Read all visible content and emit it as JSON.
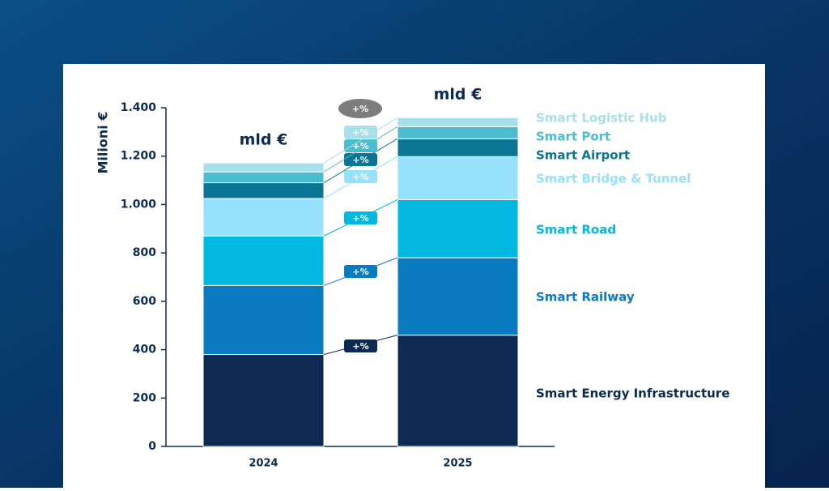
{
  "chart_data": {
    "type": "stacked_bar",
    "y_label": "Milioni €",
    "categories": [
      "2024",
      "2025"
    ],
    "total_labels": [
      "mld €",
      "mld €"
    ],
    "total_change_label": "+%",
    "series": [
      {
        "name": "Smart Energy Infrastructure",
        "color": "#0d2b52",
        "values": [
          380,
          460
        ],
        "change_label": "+%"
      },
      {
        "name": "Smart Railway",
        "color": "#0a7bc0",
        "values": [
          285,
          320
        ],
        "change_label": "+%"
      },
      {
        "name": "Smart Road",
        "color": "#00b8e0",
        "values": [
          205,
          240
        ],
        "change_label": "+%"
      },
      {
        "name": "Smart Bridge & Tunnel",
        "color": "#96e1fb",
        "values": [
          155,
          178
        ],
        "change_label": "+%"
      },
      {
        "name": "Smart Airport",
        "color": "#0b7595",
        "values": [
          65,
          74
        ],
        "change_label": "+%"
      },
      {
        "name": "Smart Port",
        "color": "#4bbdd0",
        "values": [
          45,
          50
        ],
        "change_label": "+%"
      },
      {
        "name": "Smart Logistic Hub",
        "color": "#a7e0ea",
        "values": [
          37,
          37
        ],
        "change_label": "+%"
      }
    ],
    "ylim": [
      0,
      1400
    ],
    "yticks": [
      0,
      200,
      400,
      600,
      800,
      {
        "value": 1000,
        "label": "1.000"
      },
      {
        "value": 1200,
        "label": "1.200"
      },
      {
        "value": 1400,
        "label": "1.400"
      }
    ]
  }
}
